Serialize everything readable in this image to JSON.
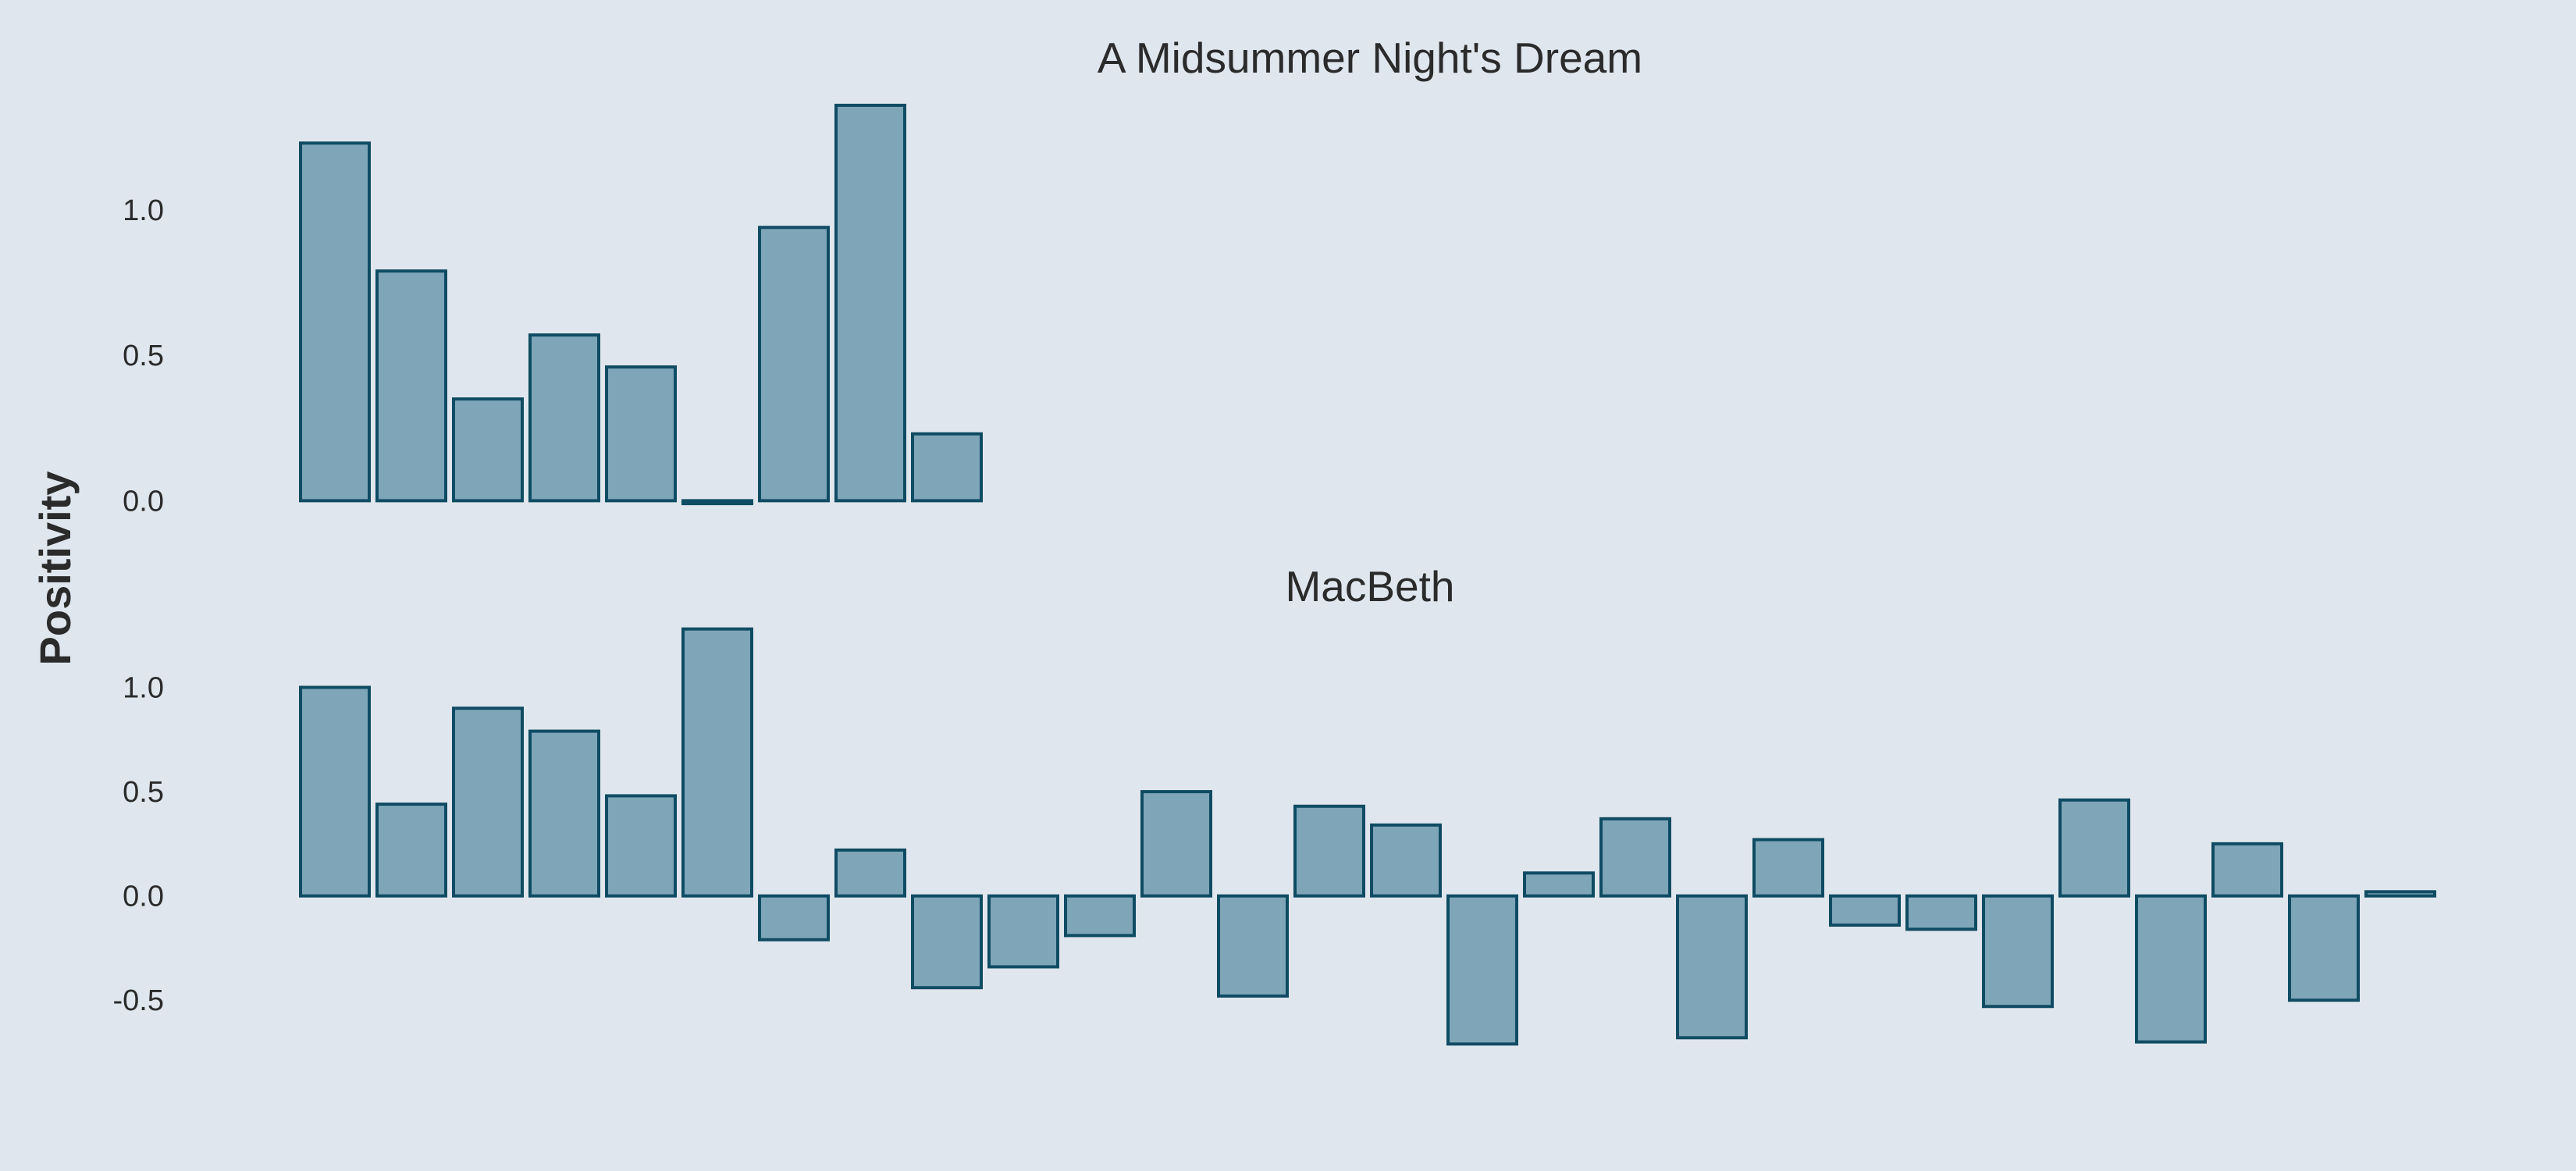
{
  "chart_data": {
    "type": "bar",
    "ylabel": "Positivity",
    "colors": {
      "background": "#e0e6ed",
      "bar_fill": "#7ea6b8",
      "bar_edge": "#0f4c63",
      "text": "#2b2b2b"
    },
    "grid": false,
    "panels": [
      {
        "title": "A Midsummer Night's Dream",
        "ylim": [
          -0.05,
          1.4
        ],
        "yticks": [
          0.0,
          0.5,
          1.0
        ],
        "ytick_labels": [
          "0.0",
          "0.5",
          "1.0"
        ],
        "values": [
          1.23,
          0.79,
          0.35,
          0.57,
          0.46,
          -0.01,
          0.94,
          1.36,
          0.23
        ]
      },
      {
        "title": "MacBeth",
        "ylim": [
          -0.72,
          1.32
        ],
        "yticks": [
          -0.5,
          0.0,
          0.5,
          1.0
        ],
        "ytick_labels": [
          "-0.5",
          "0.0",
          "0.5",
          "1.0"
        ],
        "values": [
          1.0,
          0.44,
          0.9,
          0.79,
          0.48,
          1.28,
          -0.21,
          0.22,
          -0.44,
          -0.34,
          -0.19,
          0.5,
          -0.48,
          0.43,
          0.34,
          -0.71,
          0.11,
          0.37,
          -0.68,
          0.27,
          -0.14,
          -0.16,
          -0.53,
          0.46,
          -0.7,
          0.25,
          -0.5,
          0.02
        ]
      }
    ]
  }
}
